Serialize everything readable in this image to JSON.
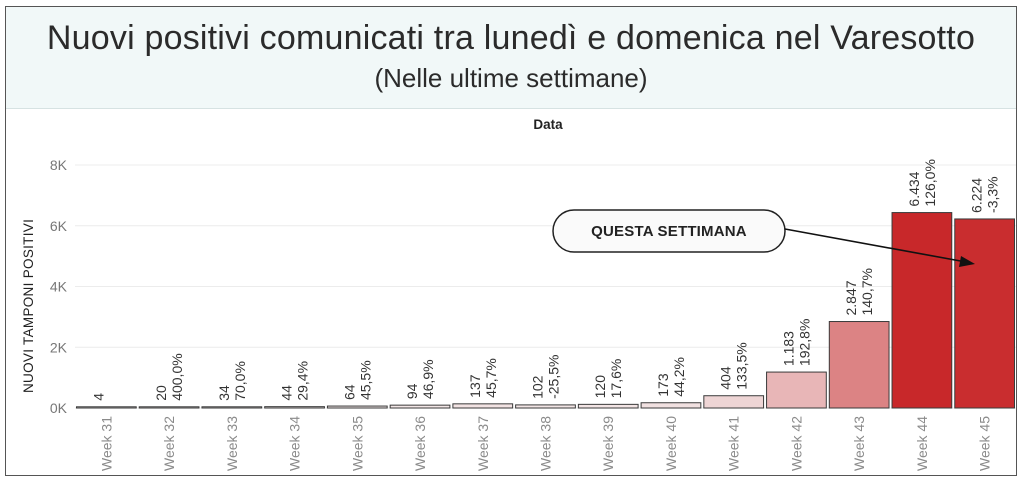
{
  "chart_data": {
    "type": "bar",
    "title": "Nuovi positivi comunicati tra lunedì e domenica nel Varesotto",
    "subtitle": "(Nelle ultime settimane)",
    "xlabel": "Data",
    "ylabel": "NUOVI TAMPONI POSITIVI",
    "ylim": [
      0,
      8500
    ],
    "yticks": [
      0,
      2000,
      4000,
      6000,
      8000
    ],
    "ytick_labels": [
      "0K",
      "2K",
      "4K",
      "6K",
      "8K"
    ],
    "grid": "horizontal",
    "categories": [
      "Week 31",
      "Week 32",
      "Week 33",
      "Week 34",
      "Week 35",
      "Week 36",
      "Week 37",
      "Week 38",
      "Week 39",
      "Week 40",
      "Week 41",
      "Week 42",
      "Week 43",
      "Week 44",
      "Week 45"
    ],
    "values": [
      4,
      20,
      34,
      44,
      64,
      94,
      137,
      102,
      120,
      173,
      404,
      1183,
      2847,
      6434,
      6224
    ],
    "value_labels": [
      "4",
      "20",
      "34",
      "44",
      "64",
      "94",
      "137",
      "102",
      "120",
      "173",
      "404",
      "1.183",
      "2.847",
      "6.434",
      "6.224"
    ],
    "change_labels": [
      "",
      "400,0%",
      "70,0%",
      "29,4%",
      "45,5%",
      "46,9%",
      "45,7%",
      "-25,5%",
      "17,6%",
      "44,2%",
      "133,5%",
      "192,8%",
      "140,7%",
      "126,0%",
      "-3,3%"
    ],
    "color_scale": [
      "#f4eeee",
      "#c8282a"
    ],
    "annotation": {
      "text": "QUESTA SETTIMANA",
      "target": "Week 45"
    }
  }
}
